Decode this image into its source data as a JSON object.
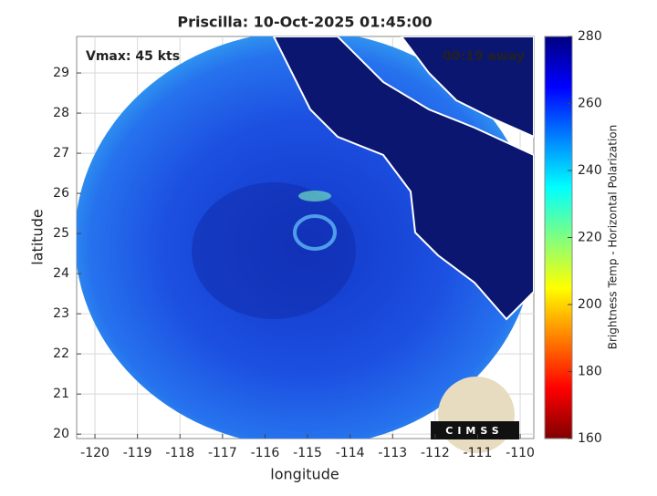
{
  "chart_data": {
    "type": "map",
    "title": "Priscilla: 10-Oct-2025 01:45:00",
    "annotations": [
      "Vmax: 45 kts",
      "00:19 away"
    ],
    "x_label": "longitude",
    "y_label": "latitude",
    "xlim": [
      -120.43,
      -109.68
    ],
    "ylim": [
      19.89,
      29.91
    ],
    "xticks": [
      -120,
      -119,
      -118,
      -117,
      -116,
      -115,
      -114,
      -113,
      -112,
      -111,
      -110
    ],
    "yticks": [
      20,
      21,
      22,
      23,
      24,
      25,
      26,
      27,
      28,
      29
    ],
    "grid": true,
    "colorbar": {
      "label": "Brightness Temp - Horizontal Polarization",
      "lim": [
        160,
        280
      ],
      "ticks": [
        160,
        180,
        200,
        220,
        240,
        260,
        280
      ]
    },
    "logo": "CIMSS"
  }
}
